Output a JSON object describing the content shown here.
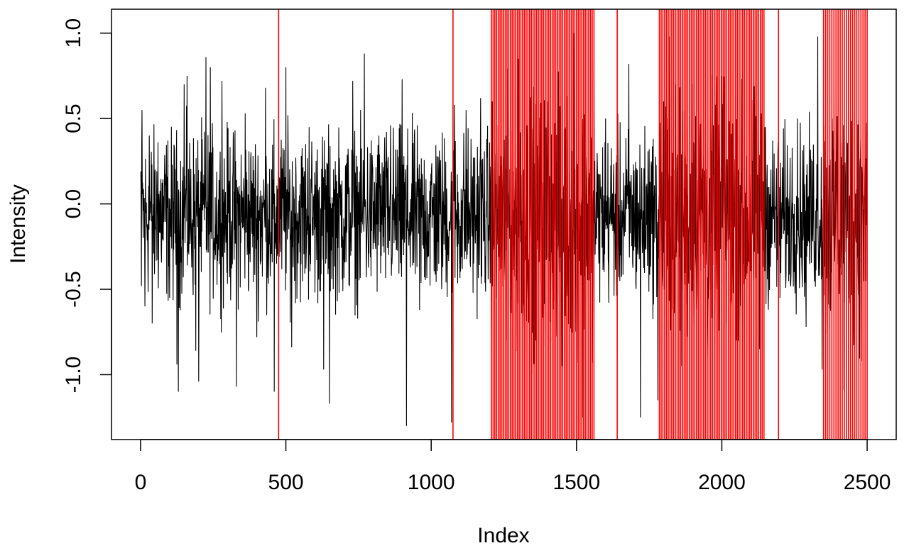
{
  "chart_data": {
    "type": "line",
    "title": "",
    "xlabel": "Index",
    "ylabel": "Intensity",
    "xlim": [
      -100,
      2600
    ],
    "ylim": [
      -1.38,
      1.14
    ],
    "x_ticks": [
      0,
      500,
      1000,
      1500,
      2000,
      2500
    ],
    "x_tick_labels": [
      "0",
      "500",
      "1000",
      "1500",
      "2000",
      "2500"
    ],
    "y_ticks": [
      -1.0,
      -0.5,
      0.0,
      0.5,
      1.0
    ],
    "y_tick_labels": [
      "-1.0",
      "-0.5",
      "0.0",
      "0.5",
      "1.0"
    ],
    "grid": false,
    "series": [
      {
        "color": "#000000",
        "n_points": 2500,
        "x_range": [
          1,
          2500
        ],
        "keypoints": [
          [
            1,
            0.19
          ],
          [
            3,
            -0.48
          ],
          [
            5,
            0.55
          ],
          [
            15,
            -0.6
          ],
          [
            30,
            0.4
          ],
          [
            40,
            -0.7
          ],
          [
            60,
            0.36
          ],
          [
            100,
            -0.55
          ],
          [
            125,
            -0.94
          ],
          [
            130,
            -1.1
          ],
          [
            150,
            0.7
          ],
          [
            160,
            0.75
          ],
          [
            190,
            -0.86
          ],
          [
            200,
            -1.04
          ],
          [
            225,
            0.86
          ],
          [
            240,
            0.8
          ],
          [
            280,
            0.72
          ],
          [
            300,
            0.42
          ],
          [
            330,
            -1.07
          ],
          [
            360,
            0.53
          ],
          [
            400,
            -0.78
          ],
          [
            430,
            0.68
          ],
          [
            460,
            -1.1
          ],
          [
            500,
            0.8
          ],
          [
            520,
            -0.84
          ],
          [
            580,
            0.45
          ],
          [
            630,
            -0.97
          ],
          [
            650,
            -1.17
          ],
          [
            730,
            0.72
          ],
          [
            770,
            0.88
          ],
          [
            820,
            0.4
          ],
          [
            860,
            0.46
          ],
          [
            900,
            0.73
          ],
          [
            915,
            -1.3
          ],
          [
            960,
            -0.62
          ],
          [
            1020,
            0.28
          ],
          [
            1070,
            -1.28
          ],
          [
            1080,
            0.58
          ],
          [
            1120,
            0.55
          ],
          [
            1170,
            0.62
          ],
          [
            1210,
            0.6
          ],
          [
            1260,
            -0.8
          ],
          [
            1300,
            0.85
          ],
          [
            1350,
            -1.0
          ],
          [
            1400,
            0.6
          ],
          [
            1450,
            -0.95
          ],
          [
            1490,
            1.0
          ],
          [
            1520,
            -1.25
          ],
          [
            1560,
            0.85
          ],
          [
            1600,
            0.5
          ],
          [
            1640,
            -0.9
          ],
          [
            1680,
            0.82
          ],
          [
            1720,
            -1.25
          ],
          [
            1750,
            0.32
          ],
          [
            1780,
            -1.15
          ],
          [
            1800,
            0.6
          ],
          [
            1820,
            0.98
          ],
          [
            1860,
            -0.95
          ],
          [
            1900,
            0.7
          ],
          [
            1950,
            -0.9
          ],
          [
            2000,
            0.75
          ],
          [
            2050,
            -0.8
          ],
          [
            2090,
            0.6
          ],
          [
            2130,
            -0.85
          ],
          [
            2150,
            0.45
          ],
          [
            2200,
            -0.55
          ],
          [
            2260,
            0.5
          ],
          [
            2290,
            -0.72
          ],
          [
            2330,
            0.98
          ],
          [
            2345,
            -0.97
          ],
          [
            2380,
            0.5
          ],
          [
            2420,
            -1.09
          ],
          [
            2450,
            0.55
          ],
          [
            2480,
            -0.92
          ],
          [
            2500,
            0.43
          ]
        ]
      }
    ],
    "vlines": {
      "color": "#ff0000",
      "single": [
        475,
        1075,
        1640,
        2195
      ],
      "bands": [
        {
          "from": 1207,
          "to": 1560,
          "count": 60
        },
        {
          "from": 1785,
          "to": 2145,
          "count": 60
        },
        {
          "from": 2350,
          "to": 2500,
          "count": 22
        }
      ]
    }
  }
}
